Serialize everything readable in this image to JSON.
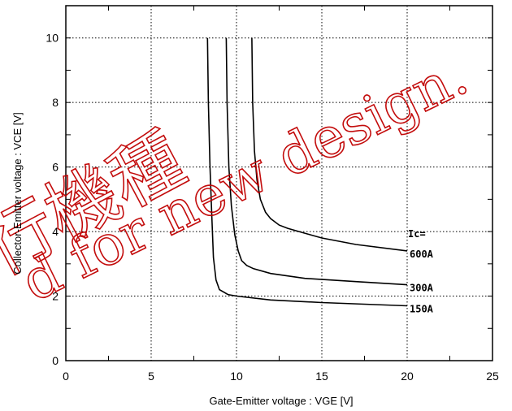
{
  "chart_data": {
    "type": "line",
    "xlabel": "Gate-Emitter  voltage  :  VGE [V]",
    "ylabel": "Collector-Emitter  voltage  :   VCE [V]",
    "xlim": [
      0,
      25
    ],
    "ylim": [
      0,
      11
    ],
    "xticks": [
      0,
      5,
      10,
      15,
      20,
      25
    ],
    "yticks": [
      0,
      2,
      4,
      6,
      8,
      10
    ],
    "grid": true,
    "legend_header": "Ic=",
    "series": [
      {
        "name": "600A",
        "x": [
          10.9,
          10.95,
          11.05,
          11.2,
          11.4,
          11.7,
          12.0,
          12.5,
          13.0,
          14.0,
          15.0,
          17.0,
          20.0
        ],
        "y": [
          10.0,
          8.0,
          6.5,
          5.6,
          5.0,
          4.6,
          4.4,
          4.2,
          4.1,
          3.95,
          3.8,
          3.6,
          3.4
        ]
      },
      {
        "name": "300A",
        "x": [
          9.4,
          9.45,
          9.55,
          9.7,
          9.9,
          10.1,
          10.3,
          10.6,
          11.0,
          12.0,
          14.0,
          17.0,
          20.0
        ],
        "y": [
          10.0,
          8.0,
          6.0,
          4.8,
          3.9,
          3.4,
          3.1,
          2.95,
          2.85,
          2.7,
          2.55,
          2.45,
          2.35
        ]
      },
      {
        "name": "150A",
        "x": [
          8.3,
          8.35,
          8.45,
          8.55,
          8.65,
          8.8,
          9.0,
          9.5,
          10.0,
          12.0,
          15.0,
          20.0
        ],
        "y": [
          10.0,
          8.0,
          6.0,
          4.5,
          3.2,
          2.5,
          2.2,
          2.05,
          2.0,
          1.88,
          1.8,
          1.7
        ]
      }
    ]
  },
  "watermark": {
    "line1": "行機種",
    "line2": "d for new design."
  }
}
